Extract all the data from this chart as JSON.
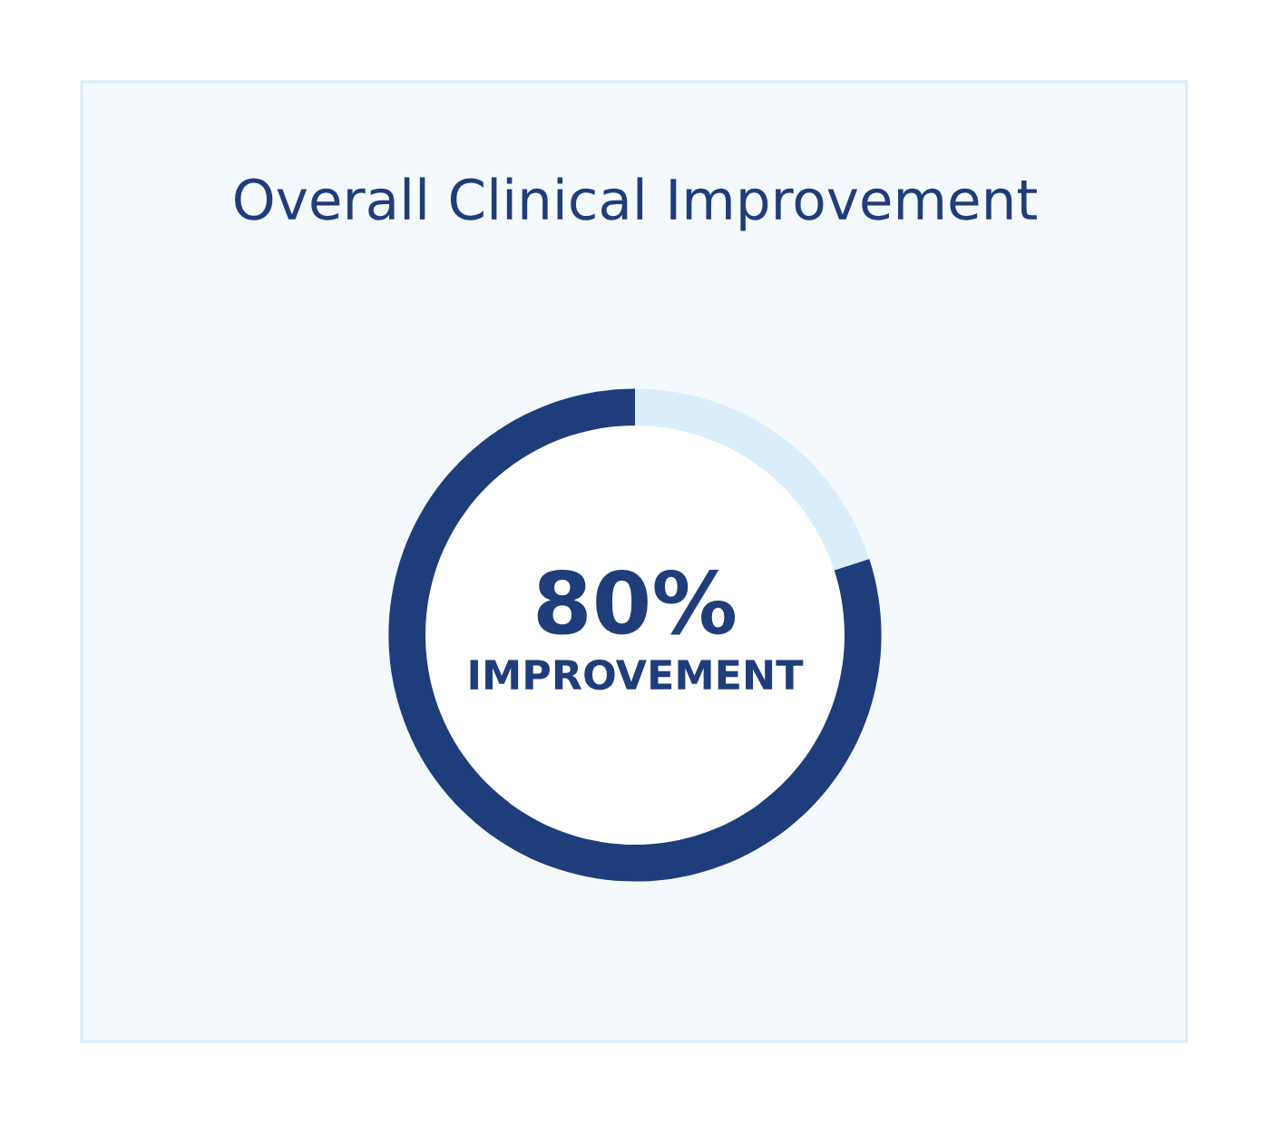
{
  "chart_data": {
    "type": "donut",
    "title": "Overall Clinical Improvement",
    "categories": [
      null,
      null
    ],
    "values": [
      80,
      20
    ],
    "colors": [
      "#1f3d7a",
      "#d9eefa"
    ],
    "value_labels": [
      "80%",
      null
    ],
    "annotations": [
      "IMPROVEMENT"
    ]
  }
}
